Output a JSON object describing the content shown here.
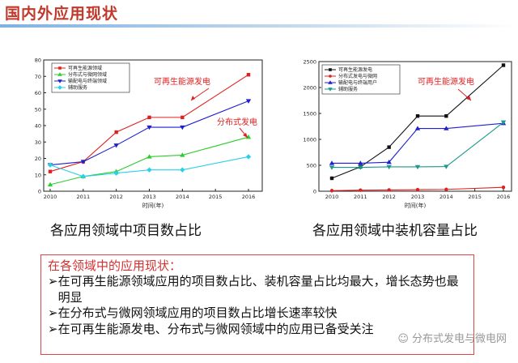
{
  "page": {
    "title": "国内外应用现状",
    "left_caption": "各应用领域中项目数占比",
    "right_caption": "各应用领域中装机容量占比",
    "status": {
      "heading": "在各领域中的应用现状：",
      "items": [
        "在可再生能源领域应用的项目数占比、装机容量占比均最大，增长态势也最明显",
        "在分布式与微网领域应用的项目数占比增长速率较快",
        "在可再生能源发电、分布式与微网领域中的应用已备受关注"
      ],
      "arrow": "➢"
    },
    "watermark": "☺ 分布式发电与微电网"
  },
  "chart_data": [
    {
      "type": "line",
      "x": [
        2010,
        2011,
        2012,
        2013,
        2014,
        2015,
        2016
      ],
      "xlabel": "时间(年)",
      "ylabel": "",
      "ylim": [
        0,
        80
      ],
      "yticks": [
        0,
        10,
        20,
        30,
        40,
        50,
        60,
        70,
        80
      ],
      "legend_position": "top-left",
      "grid": false,
      "series": [
        {
          "name": "可再生能源领域",
          "color": "#e02020",
          "marker": "square",
          "points": [
            [
              2010,
              12
            ],
            [
              2011,
              18
            ],
            [
              2012,
              36
            ],
            [
              2013,
              45
            ],
            [
              2014,
              45
            ],
            [
              2016,
              71
            ]
          ]
        },
        {
          "name": "分布式与微网领域",
          "color": "#2ecc2e",
          "marker": "triangle-up",
          "points": [
            [
              2010,
              4
            ],
            [
              2011,
              9
            ],
            [
              2012,
              12
            ],
            [
              2013,
              21
            ],
            [
              2014,
              22
            ],
            [
              2016,
              33
            ]
          ]
        },
        {
          "name": "输配电与终端领域",
          "color": "#1f1fd0",
          "marker": "triangle-down",
          "points": [
            [
              2010,
              16
            ],
            [
              2011,
              18
            ],
            [
              2012,
              28
            ],
            [
              2013,
              39
            ],
            [
              2014,
              39
            ],
            [
              2016,
              55
            ]
          ]
        },
        {
          "name": "辅助服务",
          "color": "#2ad0e8",
          "marker": "diamond",
          "points": [
            [
              2010,
              16
            ],
            [
              2011,
              9
            ],
            [
              2012,
              11
            ],
            [
              2013,
              13
            ],
            [
              2014,
              13
            ],
            [
              2016,
              21
            ]
          ]
        }
      ],
      "annotations": [
        {
          "text": "可再生能源发电",
          "color": "#e02020"
        },
        {
          "text": "分布式发电",
          "color": "#e02020"
        }
      ]
    },
    {
      "type": "line",
      "x": [
        2010,
        2011,
        2012,
        2013,
        2014,
        2015,
        2016
      ],
      "xlabel": "时间(年)",
      "ylabel": "",
      "ylim": [
        0,
        2500
      ],
      "yticks": [
        0,
        500,
        1000,
        1500,
        2000,
        2500
      ],
      "legend_position": "top-left",
      "grid": false,
      "series": [
        {
          "name": "可再生能源发电",
          "color": "#111111",
          "marker": "square",
          "points": [
            [
              2010,
              250
            ],
            [
              2011,
              470
            ],
            [
              2012,
              850
            ],
            [
              2013,
              1450
            ],
            [
              2014,
              1450
            ],
            [
              2016,
              2430
            ]
          ]
        },
        {
          "name": "分布式发电与微网",
          "color": "#e02020",
          "marker": "circle",
          "points": [
            [
              2010,
              10
            ],
            [
              2011,
              20
            ],
            [
              2012,
              25
            ],
            [
              2013,
              30
            ],
            [
              2014,
              35
            ],
            [
              2016,
              75
            ]
          ]
        },
        {
          "name": "输配电与终端用户",
          "color": "#1f1fd0",
          "marker": "triangle-up",
          "points": [
            [
              2010,
              540
            ],
            [
              2011,
              540
            ],
            [
              2012,
              560
            ],
            [
              2013,
              1210
            ],
            [
              2014,
              1210
            ],
            [
              2016,
              1310
            ]
          ]
        },
        {
          "name": "辅助服务",
          "color": "#1a9a8a",
          "marker": "triangle-down",
          "points": [
            [
              2010,
              460
            ],
            [
              2011,
              460
            ],
            [
              2012,
              470
            ],
            [
              2013,
              470
            ],
            [
              2014,
              475
            ],
            [
              2016,
              1330
            ]
          ]
        }
      ],
      "annotations": [
        {
          "text": "可再生能源发电",
          "color": "#e02020"
        }
      ]
    }
  ]
}
